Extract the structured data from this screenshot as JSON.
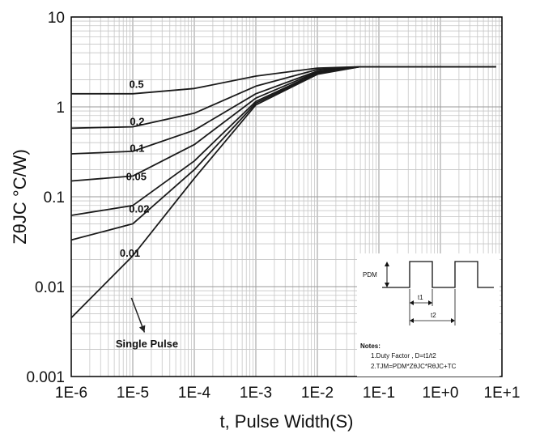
{
  "chart_data": {
    "type": "line",
    "title": "",
    "xlabel": "t, Pulse Width(S)",
    "ylabel": "ZθJC °C/W)",
    "xscale": "log",
    "yscale": "log",
    "xlim": [
      1e-06,
      10
    ],
    "ylim": [
      0.001,
      10
    ],
    "grid": true,
    "x_ticks": [
      "1E-6",
      "1E-5",
      "1E-4",
      "1E-3",
      "1E-2",
      "1E-1",
      "1E+0",
      "1E+1"
    ],
    "y_ticks": [
      "0.001",
      "0.01",
      "0.1",
      "1",
      "10"
    ],
    "x": [
      1e-06,
      1e-05,
      0.0001,
      0.001,
      0.01,
      0.05,
      0.1,
      1,
      8
    ],
    "series": [
      {
        "name": "0.5",
        "values": [
          1.4,
          1.4,
          1.6,
          2.2,
          2.7,
          2.8,
          2.8,
          2.8,
          2.8
        ]
      },
      {
        "name": "0.2",
        "values": [
          0.58,
          0.6,
          0.85,
          1.7,
          2.6,
          2.8,
          2.8,
          2.8,
          2.8
        ]
      },
      {
        "name": "0.1",
        "values": [
          0.3,
          0.32,
          0.55,
          1.4,
          2.5,
          2.8,
          2.8,
          2.8,
          2.8
        ]
      },
      {
        "name": "0.05",
        "values": [
          0.15,
          0.17,
          0.38,
          1.25,
          2.45,
          2.8,
          2.8,
          2.8,
          2.8
        ]
      },
      {
        "name": "0.02",
        "values": [
          0.062,
          0.08,
          0.25,
          1.15,
          2.4,
          2.8,
          2.8,
          2.8,
          2.8
        ]
      },
      {
        "name": "0.01",
        "values": [
          0.033,
          0.05,
          0.2,
          1.1,
          2.35,
          2.8,
          2.8,
          2.8,
          2.8
        ]
      },
      {
        "name": "Single Pulse",
        "values": [
          0.0045,
          0.022,
          0.16,
          1.05,
          2.3,
          2.8,
          2.8,
          2.8,
          2.8
        ]
      }
    ],
    "inset": {
      "pulse_label": "PDM",
      "t1_label": "t1",
      "t2_label": "t2",
      "notes_title": "Notes:",
      "note1": "1.Duty Factor , D=t1/t2",
      "note2": "2.TJM=PDM*ZθJC*RθJC+TC"
    }
  }
}
